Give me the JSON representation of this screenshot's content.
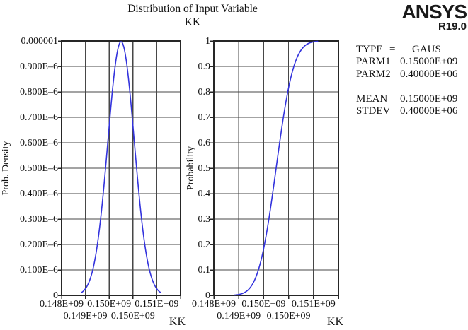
{
  "header": {
    "title_line1": "Distribution of Input Variable",
    "title_line2": "KK",
    "logo": "ANSYS",
    "logo_version": "R19.0"
  },
  "stats_panel": {
    "rows": [
      {
        "label": "TYPE",
        "eq": "=",
        "value": "GAUS"
      },
      {
        "label": "PARM1",
        "eq": "",
        "value": "0.15000E+09"
      },
      {
        "label": "PARM2",
        "eq": "",
        "value": "0.40000E+06"
      },
      {
        "label": "",
        "eq": "",
        "value": ""
      },
      {
        "label": "MEAN",
        "eq": "",
        "value": "0.15000E+09"
      },
      {
        "label": "STDEV",
        "eq": "",
        "value": "0.40000E+06"
      }
    ]
  },
  "chart_data": [
    {
      "type": "line",
      "name": "probability-density",
      "curve": "gaussian-pdf",
      "title": "Distribution of Input Variable KK",
      "distribution": "GAUS",
      "mean": 150000000,
      "stdev": 400000,
      "xlim": [
        148200000,
        151800000
      ],
      "curve_domain": [
        148800000,
        151200000
      ],
      "ylim": [
        0,
        1e-06
      ],
      "xlabel": "KK",
      "ylabel": "Prob. Density",
      "grid": true,
      "x_ticks_row1": [
        "0.148E+09",
        "0.150E+09",
        "0.151E+09"
      ],
      "x_ticks_row2": [
        "0.149E+09",
        "0.150E+09"
      ],
      "y_ticks": [
        "0.000001",
        "0.900E–6",
        "0.800E–6",
        "0.700E–6",
        "0.600E–6",
        "0.500E–6",
        "0.400E–6",
        "0.300E–6",
        "0.200E–6",
        "0.100E–6",
        "0"
      ]
    },
    {
      "type": "line",
      "name": "cumulative-probability",
      "curve": "gaussian-cdf",
      "title": "Distribution of Input Variable KK",
      "distribution": "GAUS",
      "mean": 150000000,
      "stdev": 400000,
      "xlim": [
        148200000,
        151800000
      ],
      "curve_domain": [
        148800000,
        151200000
      ],
      "ylim": [
        0,
        1
      ],
      "xlabel": "KK",
      "ylabel": "Probability",
      "grid": true,
      "x_ticks_row1": [
        "0.148E+09",
        "0.150E+09",
        "0.151E+09"
      ],
      "x_ticks_row2": [
        "0.149E+09",
        "0.150E+09"
      ],
      "y_ticks": [
        "1",
        "0.9",
        "0.8",
        "0.7",
        "0.6",
        "0.5",
        "0.4",
        "0.3",
        "0.2",
        "0.1",
        "0"
      ]
    }
  ],
  "colors": {
    "curve": "#3333dd",
    "grid": "#474747",
    "axis": "#262626",
    "text": "#111111",
    "background": "#ffffff"
  }
}
